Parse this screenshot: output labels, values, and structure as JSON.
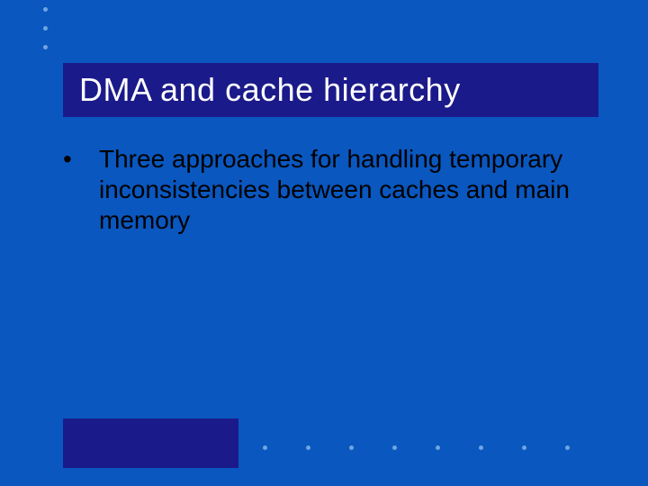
{
  "slide": {
    "background_color": "#0a57bf",
    "title": {
      "text": "DMA and cache hierarchy",
      "bar_color": "#1b1a8a",
      "text_color": "#ffffff",
      "font_size": 36
    },
    "body": {
      "bullets": [
        {
          "marker": "•",
          "text": "Three approaches for handling temporary inconsistencies between caches and main memory"
        }
      ],
      "text_color": "#000000",
      "font_size": 28
    },
    "decor": {
      "dot_color": "#6fa6e0",
      "top_dot_count": 3,
      "bottom_dot_count": 8,
      "bottom_rect_color": "#1b1a8a"
    }
  }
}
